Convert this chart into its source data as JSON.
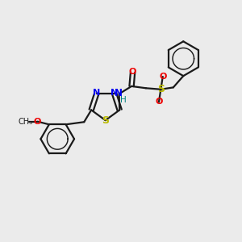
{
  "bg_color": "#ebebeb",
  "bond_color": "#1a1a1a",
  "N_color": "#0000ee",
  "S_color": "#bbbb00",
  "O_color": "#ee0000",
  "NH_color": "#008080",
  "line_width": 1.6,
  "dbo": 0.09,
  "figsize": [
    3.0,
    3.0
  ],
  "dpi": 100,
  "xlim": [
    0,
    10
  ],
  "ylim": [
    0,
    10
  ]
}
